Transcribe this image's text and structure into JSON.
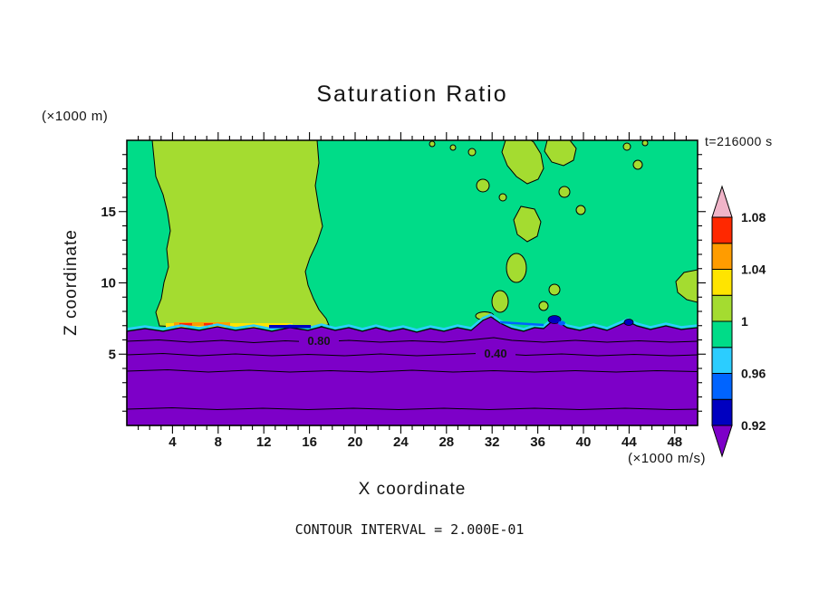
{
  "palette": {
    "background": "#ffffff",
    "purple": "#7D00C8",
    "navy": "#0000C0",
    "blue": "#0064FF",
    "cyan": "#2BCDFF",
    "green": "#00DC88",
    "chartreuse": "#A4DC30",
    "yellow": "#FFE400",
    "orange": "#FF9C00",
    "red": "#FF2800",
    "pink": "#F0B4C8",
    "frame": "#000000",
    "text": "#141414"
  },
  "chart_data": {
    "type": "heatmap",
    "title": "Saturation Ratio",
    "xlabel": "X coordinate",
    "ylabel": "Z coordinate",
    "x_units_label": "(×1000 m/s)",
    "y_units_label": "(×1000 m)",
    "time_label": "t=216000 s",
    "footer_label": "CONTOUR INTERVAL = 2.000E-01",
    "contour_interval": 0.2,
    "xlim": [
      0,
      50
    ],
    "ylim": [
      0,
      20
    ],
    "x_minor_step": 1,
    "y_minor_step": 1,
    "x_major_step": 4,
    "y_major_step": 5,
    "x_ticks": [
      "4",
      "8",
      "12",
      "16",
      "20",
      "24",
      "28",
      "32",
      "36",
      "40",
      "44",
      "48"
    ],
    "y_ticks": [
      "5",
      "10",
      "15"
    ],
    "colorbar": {
      "labels_bottom_to_top": [
        "0.92",
        "0.96",
        "1",
        "1.04",
        "1.08"
      ],
      "segments_bottom_to_top": [
        "navy",
        "blue",
        "cyan",
        "green",
        "chartreuse",
        "yellow",
        "orange",
        "red"
      ],
      "below_range_color": "purple",
      "above_range_color": "pink"
    },
    "contour_line_labels": [
      "0.80",
      "0.40"
    ],
    "regions": [
      {
        "value_range": "< 0.92",
        "color": "purple",
        "where": "boundary layer below z ≈ 6.5, crossed by line contours 0.20–0.80"
      },
      {
        "value_range": "0.98–1.00",
        "color": "green",
        "where": "most of the free atmosphere above z ≈ 6.5"
      },
      {
        "value_range": "1.00–1.02",
        "color": "chartreuse",
        "where": "large region x ≈ 2–17 up to domain top; scattered cells x ≈ 28–38 and near x ≈ 48"
      },
      {
        "value_range": "1.02–1.08",
        "color": "yellow/orange/red",
        "where": "thin streaks on the interface near x ≈ 4–10"
      },
      {
        "value_range": "0.92–0.98",
        "color": "navy/blue/cyan",
        "where": "thin strips and spots along the z ≈ 6.5 interface"
      }
    ]
  }
}
